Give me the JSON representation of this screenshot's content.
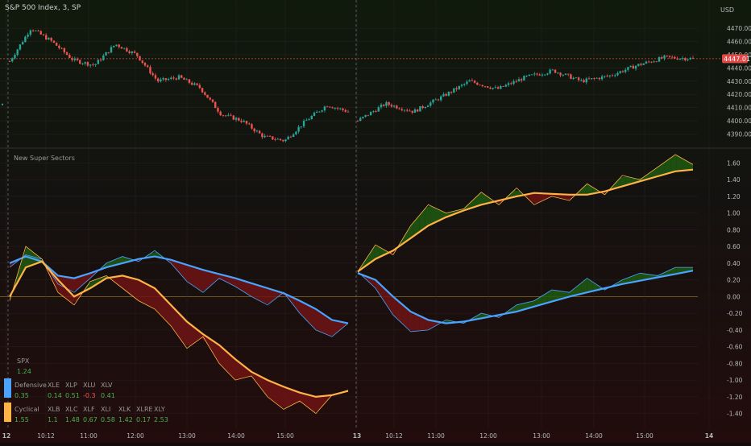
{
  "colors": {
    "background": "#140c0c",
    "grid": "#2a2020",
    "up_candle": "#26a69a",
    "down_candle": "#ef5350",
    "defensive": "#4aa3ff",
    "cyclical": "#ffb347",
    "fill_up": "#1f5a12",
    "fill_down": "#6e1414",
    "spx_pos": "#4caf50",
    "value_neg": "#ef5350",
    "axis_text": "#b8b8b8",
    "label_text": "#9a9a9a",
    "price_badge": "#e04848"
  },
  "price_panel": {
    "title": "S&P 500 Index, 3, SP",
    "currency": "USD",
    "last_price_label": "4447.01"
  },
  "indicator_panel": {
    "title": "New Super Sectors"
  },
  "x_axis": {
    "ticks": [
      {
        "label": "12",
        "bold": true
      },
      {
        "label": "10:12",
        "bold": false
      },
      {
        "label": "11:00",
        "bold": false
      },
      {
        "label": "12:00",
        "bold": false
      },
      {
        "label": "13:00",
        "bold": false
      },
      {
        "label": "14:00",
        "bold": false
      },
      {
        "label": "15:00",
        "bold": false
      },
      {
        "label": "13",
        "bold": true
      },
      {
        "label": "10:12",
        "bold": false
      },
      {
        "label": "11:00",
        "bold": false
      },
      {
        "label": "12:00",
        "bold": false
      },
      {
        "label": "13:00",
        "bold": false
      },
      {
        "label": "14:00",
        "bold": false
      },
      {
        "label": "15:00",
        "bold": false
      },
      {
        "label": "14",
        "bold": true
      }
    ]
  },
  "table": {
    "spx_label": "SPX",
    "spx_value": "1.24",
    "defensive": {
      "label": "Defensive",
      "value": "0.35",
      "tickers": [
        "XLE",
        "XLP",
        "XLU",
        "XLV"
      ],
      "values": [
        "0.14",
        "0.51",
        "-0.3",
        "0.41"
      ]
    },
    "cyclical": {
      "label": "Cyclical",
      "value": "1.55",
      "tickers": [
        "XLB",
        "XLC",
        "XLF",
        "XLI",
        "XLK",
        "XLRE",
        "XLY"
      ],
      "values": [
        "1.1",
        "1.48",
        "0.67",
        "0.58",
        "1.42",
        "0.17",
        "2.53"
      ]
    }
  },
  "chart_data": [
    {
      "type": "candlestick",
      "title": "S&P 500 Index, 3, SP",
      "ylabel": "USD",
      "ylim": [
        4383,
        4478
      ],
      "y_ticks": [
        4390,
        4400,
        4410,
        4420,
        4430,
        4440,
        4450,
        4460,
        4470
      ],
      "last_price": 4447.01,
      "sessions": [
        {
          "day": "12",
          "close_path": [
            4445,
            4470,
            4460,
            4446,
            4442,
            4458,
            4450,
            4430,
            4433,
            4425,
            4405,
            4400,
            4388,
            4385,
            4400,
            4412,
            4407
          ]
        },
        {
          "day": "13",
          "close_path": [
            4400,
            4413,
            4407,
            4418,
            4430,
            4424,
            4433,
            4438,
            4430,
            4434,
            4442,
            4448,
            4447
          ]
        }
      ]
    },
    {
      "type": "line",
      "title": "New Super Sectors",
      "ylim": [
        -1.5,
        1.7
      ],
      "y_ticks": [
        -1.4,
        -1.2,
        -1.0,
        -0.8,
        -0.6,
        -0.4,
        -0.2,
        0.0,
        0.2,
        0.4,
        0.6,
        0.8,
        1.0,
        1.2,
        1.4,
        1.6
      ],
      "series": [
        {
          "name": "Defensive",
          "color": "defensive",
          "day1_smooth": [
            0.4,
            0.48,
            0.42,
            0.25,
            0.22,
            0.28,
            0.35,
            0.4,
            0.45,
            0.48,
            0.44,
            0.38,
            0.32,
            0.27,
            0.22,
            0.16,
            0.1,
            0.04,
            -0.05,
            -0.15,
            -0.28,
            -0.32
          ],
          "day1_raw": [
            0.35,
            0.5,
            0.45,
            0.15,
            0.05,
            0.22,
            0.4,
            0.48,
            0.42,
            0.55,
            0.4,
            0.18,
            0.05,
            0.22,
            0.12,
            0.0,
            -0.1,
            0.05,
            -0.2,
            -0.4,
            -0.48,
            -0.32
          ],
          "day2_smooth": [
            0.28,
            0.2,
            0.0,
            -0.18,
            -0.28,
            -0.32,
            -0.3,
            -0.26,
            -0.22,
            -0.18,
            -0.12,
            -0.06,
            0.0,
            0.05,
            0.1,
            0.15,
            0.19,
            0.23,
            0.27,
            0.31
          ],
          "day2_raw": [
            0.3,
            0.1,
            -0.22,
            -0.42,
            -0.4,
            -0.28,
            -0.32,
            -0.2,
            -0.25,
            -0.1,
            -0.05,
            0.08,
            0.05,
            0.22,
            0.08,
            0.2,
            0.28,
            0.25,
            0.35,
            0.35
          ]
        },
        {
          "name": "Cyclical",
          "color": "cyclical",
          "day1_smooth": [
            0.0,
            0.35,
            0.42,
            0.2,
            0.0,
            0.1,
            0.22,
            0.25,
            0.2,
            0.1,
            -0.1,
            -0.3,
            -0.45,
            -0.58,
            -0.75,
            -0.9,
            -1.0,
            -1.08,
            -1.15,
            -1.2,
            -1.18,
            -1.13
          ],
          "day1_raw": [
            -0.05,
            0.6,
            0.45,
            0.05,
            -0.1,
            0.18,
            0.25,
            0.1,
            -0.05,
            -0.15,
            -0.35,
            -0.62,
            -0.48,
            -0.8,
            -1.0,
            -0.95,
            -1.2,
            -1.35,
            -1.25,
            -1.4,
            -1.18,
            -1.12
          ],
          "day2_smooth": [
            0.3,
            0.45,
            0.55,
            0.7,
            0.85,
            0.95,
            1.03,
            1.1,
            1.15,
            1.2,
            1.24,
            1.23,
            1.22,
            1.22,
            1.26,
            1.32,
            1.38,
            1.44,
            1.5,
            1.52
          ],
          "day2_raw": [
            0.3,
            0.62,
            0.5,
            0.85,
            1.1,
            1.0,
            1.05,
            1.25,
            1.1,
            1.3,
            1.1,
            1.2,
            1.15,
            1.35,
            1.22,
            1.45,
            1.4,
            1.55,
            1.7,
            1.58
          ]
        }
      ]
    }
  ]
}
